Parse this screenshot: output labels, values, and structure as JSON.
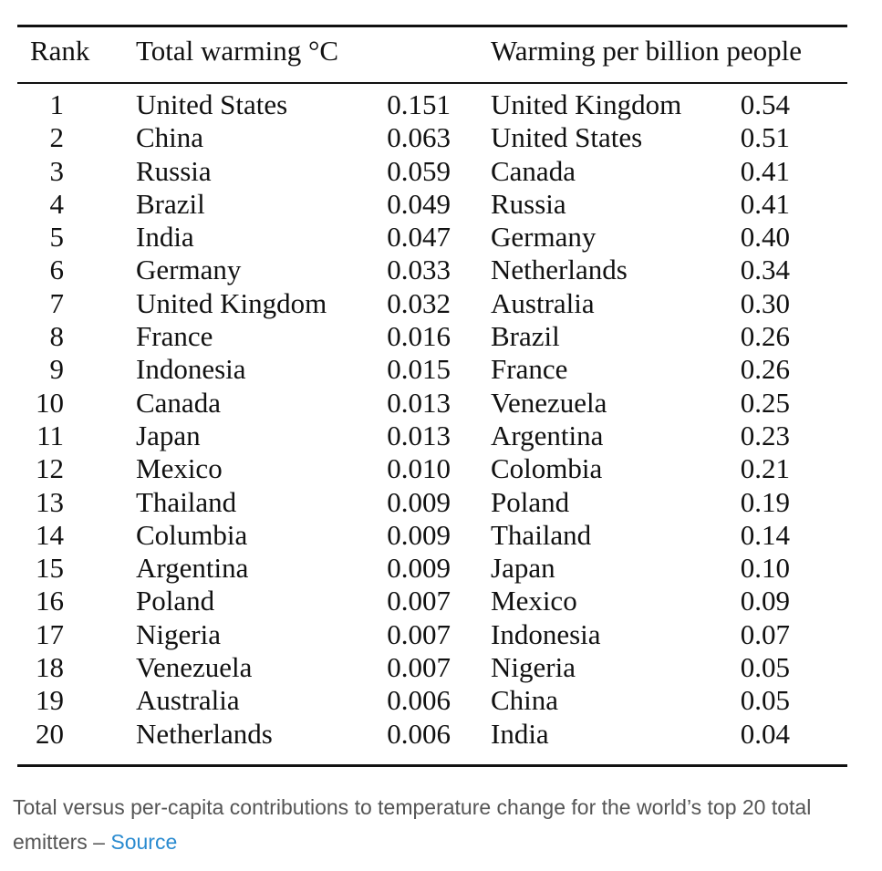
{
  "table": {
    "headers": {
      "rank": "Rank",
      "total": "Total warming °C",
      "per_capita": "Warming per billion people"
    },
    "rows": [
      {
        "rank": "1",
        "total_country": "United States",
        "total_value": "0.151",
        "pc_country": "United Kingdom",
        "pc_value": "0.54"
      },
      {
        "rank": "2",
        "total_country": "China",
        "total_value": "0.063",
        "pc_country": "United States",
        "pc_value": "0.51"
      },
      {
        "rank": "3",
        "total_country": "Russia",
        "total_value": "0.059",
        "pc_country": "Canada",
        "pc_value": "0.41"
      },
      {
        "rank": "4",
        "total_country": "Brazil",
        "total_value": "0.049",
        "pc_country": "Russia",
        "pc_value": "0.41"
      },
      {
        "rank": "5",
        "total_country": "India",
        "total_value": "0.047",
        "pc_country": "Germany",
        "pc_value": "0.40"
      },
      {
        "rank": "6",
        "total_country": "Germany",
        "total_value": "0.033",
        "pc_country": "Netherlands",
        "pc_value": "0.34"
      },
      {
        "rank": "7",
        "total_country": "United Kingdom",
        "total_value": "0.032",
        "pc_country": "Australia",
        "pc_value": "0.30"
      },
      {
        "rank": "8",
        "total_country": "France",
        "total_value": "0.016",
        "pc_country": "Brazil",
        "pc_value": "0.26"
      },
      {
        "rank": "9",
        "total_country": "Indonesia",
        "total_value": "0.015",
        "pc_country": "France",
        "pc_value": "0.26"
      },
      {
        "rank": "10",
        "total_country": "Canada",
        "total_value": "0.013",
        "pc_country": "Venezuela",
        "pc_value": "0.25"
      },
      {
        "rank": "11",
        "total_country": "Japan",
        "total_value": "0.013",
        "pc_country": "Argentina",
        "pc_value": "0.23"
      },
      {
        "rank": "12",
        "total_country": "Mexico",
        "total_value": "0.010",
        "pc_country": "Colombia",
        "pc_value": "0.21"
      },
      {
        "rank": "13",
        "total_country": "Thailand",
        "total_value": "0.009",
        "pc_country": "Poland",
        "pc_value": "0.19"
      },
      {
        "rank": "14",
        "total_country": "Columbia",
        "total_value": "0.009",
        "pc_country": "Thailand",
        "pc_value": "0.14"
      },
      {
        "rank": "15",
        "total_country": "Argentina",
        "total_value": "0.009",
        "pc_country": "Japan",
        "pc_value": "0.10"
      },
      {
        "rank": "16",
        "total_country": "Poland",
        "total_value": "0.007",
        "pc_country": "Mexico",
        "pc_value": "0.09"
      },
      {
        "rank": "17",
        "total_country": "Nigeria",
        "total_value": "0.007",
        "pc_country": "Indonesia",
        "pc_value": "0.07"
      },
      {
        "rank": "18",
        "total_country": "Venezuela",
        "total_value": "0.007",
        "pc_country": "Nigeria",
        "pc_value": "0.05"
      },
      {
        "rank": "19",
        "total_country": "Australia",
        "total_value": "0.006",
        "pc_country": "China",
        "pc_value": "0.05"
      },
      {
        "rank": "20",
        "total_country": "Netherlands",
        "total_value": "0.006",
        "pc_country": "India",
        "pc_value": "0.04"
      }
    ]
  },
  "caption": {
    "text": "Total versus per-capita contributions to temperature change for the world’s top 20 total emitters – ",
    "link_label": "Source",
    "link_color": "#2a8bd0"
  }
}
